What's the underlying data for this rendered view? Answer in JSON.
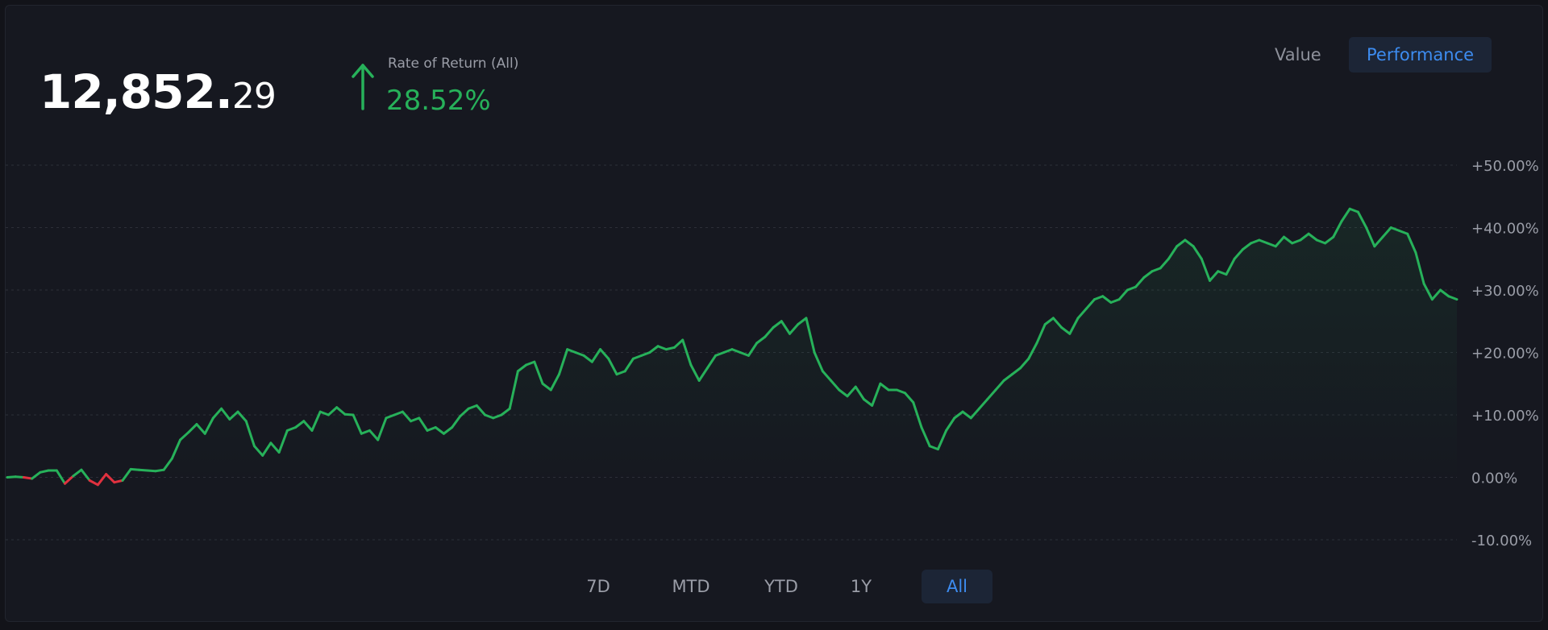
{
  "summary": {
    "balance_int": "12,852.",
    "balance_dec": "29",
    "ror_label": "Rate of Return (All)",
    "ror_value": "28.52%",
    "ror_direction": "up-arrow-icon"
  },
  "view_toggle": {
    "value_label": "Value",
    "performance_label": "Performance",
    "selected": "Performance"
  },
  "ranges": [
    "7D",
    "MTD",
    "YTD",
    "1Y",
    "All"
  ],
  "selected_range": "All",
  "colors": {
    "positive": "#27b15a",
    "negative": "#e0313f",
    "accent": "#3d8cf0",
    "grid": "#2c2f38"
  },
  "chart_data": {
    "type": "area",
    "title": "",
    "xlabel": "",
    "ylabel": "",
    "ylim": [
      -10,
      50
    ],
    "y_ticks": [
      "+50.00%",
      "+40.00%",
      "+30.00%",
      "+20.00%",
      "+10.00%",
      "0.00%",
      "-10.00%"
    ],
    "y_tick_values": [
      50,
      40,
      30,
      20,
      10,
      0,
      -10
    ],
    "grid": true,
    "series": [
      {
        "values": [
          0.0,
          0.1,
          0.0,
          -0.2,
          0.8,
          1.1,
          1.1,
          -1.0,
          0.2,
          1.2,
          -0.5,
          -1.2,
          0.5,
          -0.8,
          -0.5,
          1.3,
          1.2,
          1.1,
          1.0,
          1.2,
          3.0,
          6.0,
          7.2,
          8.5,
          7.0,
          9.5,
          11.0,
          9.3,
          10.5,
          9.0,
          5.0,
          3.5,
          5.5,
          4.0,
          7.5,
          8.0,
          9.0,
          7.5,
          10.5,
          10.0,
          11.2,
          10.1,
          10.0,
          7.0,
          7.5,
          6.0,
          9.5,
          10.0,
          10.5,
          9.0,
          9.5,
          7.5,
          8.0,
          7.0,
          8.0,
          9.8,
          11.0,
          11.5,
          10.0,
          9.5,
          10.0,
          11.0,
          17.0,
          18.0,
          18.5,
          15.0,
          14.0,
          16.5,
          20.5,
          20.0,
          19.5,
          18.5,
          20.5,
          19.0,
          16.5,
          17.0,
          19.0,
          19.5,
          20.0,
          21.0,
          20.5,
          20.8,
          22.0,
          18.0,
          15.5,
          17.5,
          19.5,
          20.0,
          20.5,
          20.0,
          19.5,
          21.5,
          22.5,
          24.0,
          25.0,
          23.0,
          24.5,
          25.5,
          20.0,
          17.0,
          15.5,
          14.0,
          13.0,
          14.5,
          12.5,
          11.5,
          15.0,
          14.0,
          14.0,
          13.5,
          12.0,
          8.0,
          5.0,
          4.5,
          7.5,
          9.5,
          10.5,
          9.5,
          11.0,
          12.5,
          14.0,
          15.5,
          16.5,
          17.5,
          19.0,
          21.5,
          24.5,
          25.5,
          24.0,
          23.0,
          25.5,
          27.0,
          28.5,
          29.0,
          28.0,
          28.5,
          30.0,
          30.5,
          32.0,
          33.0,
          33.5,
          35.0,
          37.0,
          38.0,
          37.0,
          35.0,
          31.5,
          33.0,
          32.5,
          35.0,
          36.5,
          37.5,
          38.0,
          37.5,
          37.0,
          38.5,
          37.5,
          38.0,
          39.0,
          38.0,
          37.5,
          38.5,
          41.0,
          43.0,
          42.5,
          40.0,
          37.0,
          38.5,
          40.0,
          39.5,
          39.0,
          36.0,
          31.0,
          28.5,
          30.0,
          29.0,
          28.5
        ]
      }
    ]
  }
}
